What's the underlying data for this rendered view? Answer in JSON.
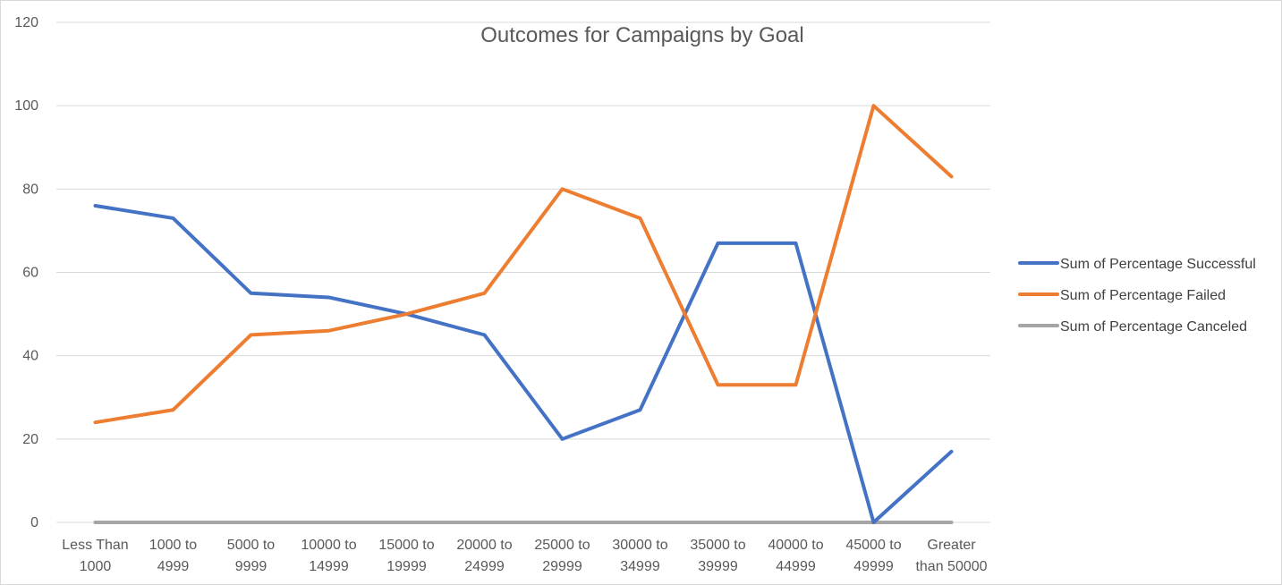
{
  "chart_data": {
    "type": "line",
    "title": "Outcomes for Campaigns by Goal",
    "xlabel": "",
    "ylabel": "",
    "categories": [
      [
        "Less Than",
        "1000"
      ],
      [
        "1000 to",
        "4999"
      ],
      [
        "5000 to",
        "9999"
      ],
      [
        "10000 to",
        "14999"
      ],
      [
        "15000 to",
        "19999"
      ],
      [
        "20000 to",
        "24999"
      ],
      [
        "25000 to",
        "29999"
      ],
      [
        "30000 to",
        "34999"
      ],
      [
        "35000 to",
        "39999"
      ],
      [
        "40000 to",
        "44999"
      ],
      [
        "45000 to",
        "49999"
      ],
      [
        "Greater",
        "than 50000"
      ]
    ],
    "ylim": [
      0,
      120
    ],
    "yticks": [
      0,
      20,
      40,
      60,
      80,
      100,
      120
    ],
    "grid": true,
    "legend_position": "right",
    "series": [
      {
        "name": "Sum of Percentage Successful",
        "color": "#4472C4",
        "values": [
          76,
          73,
          55,
          54,
          50,
          45,
          20,
          27,
          67,
          67,
          0,
          17
        ]
      },
      {
        "name": "Sum of Percentage Failed",
        "color": "#ED7D31",
        "values": [
          24,
          27,
          45,
          46,
          50,
          55,
          80,
          73,
          33,
          33,
          100,
          83
        ]
      },
      {
        "name": "Sum of Percentage Canceled",
        "color": "#A5A5A5",
        "values": [
          0,
          0,
          0,
          0,
          0,
          0,
          0,
          0,
          0,
          0,
          0,
          0
        ]
      }
    ]
  }
}
